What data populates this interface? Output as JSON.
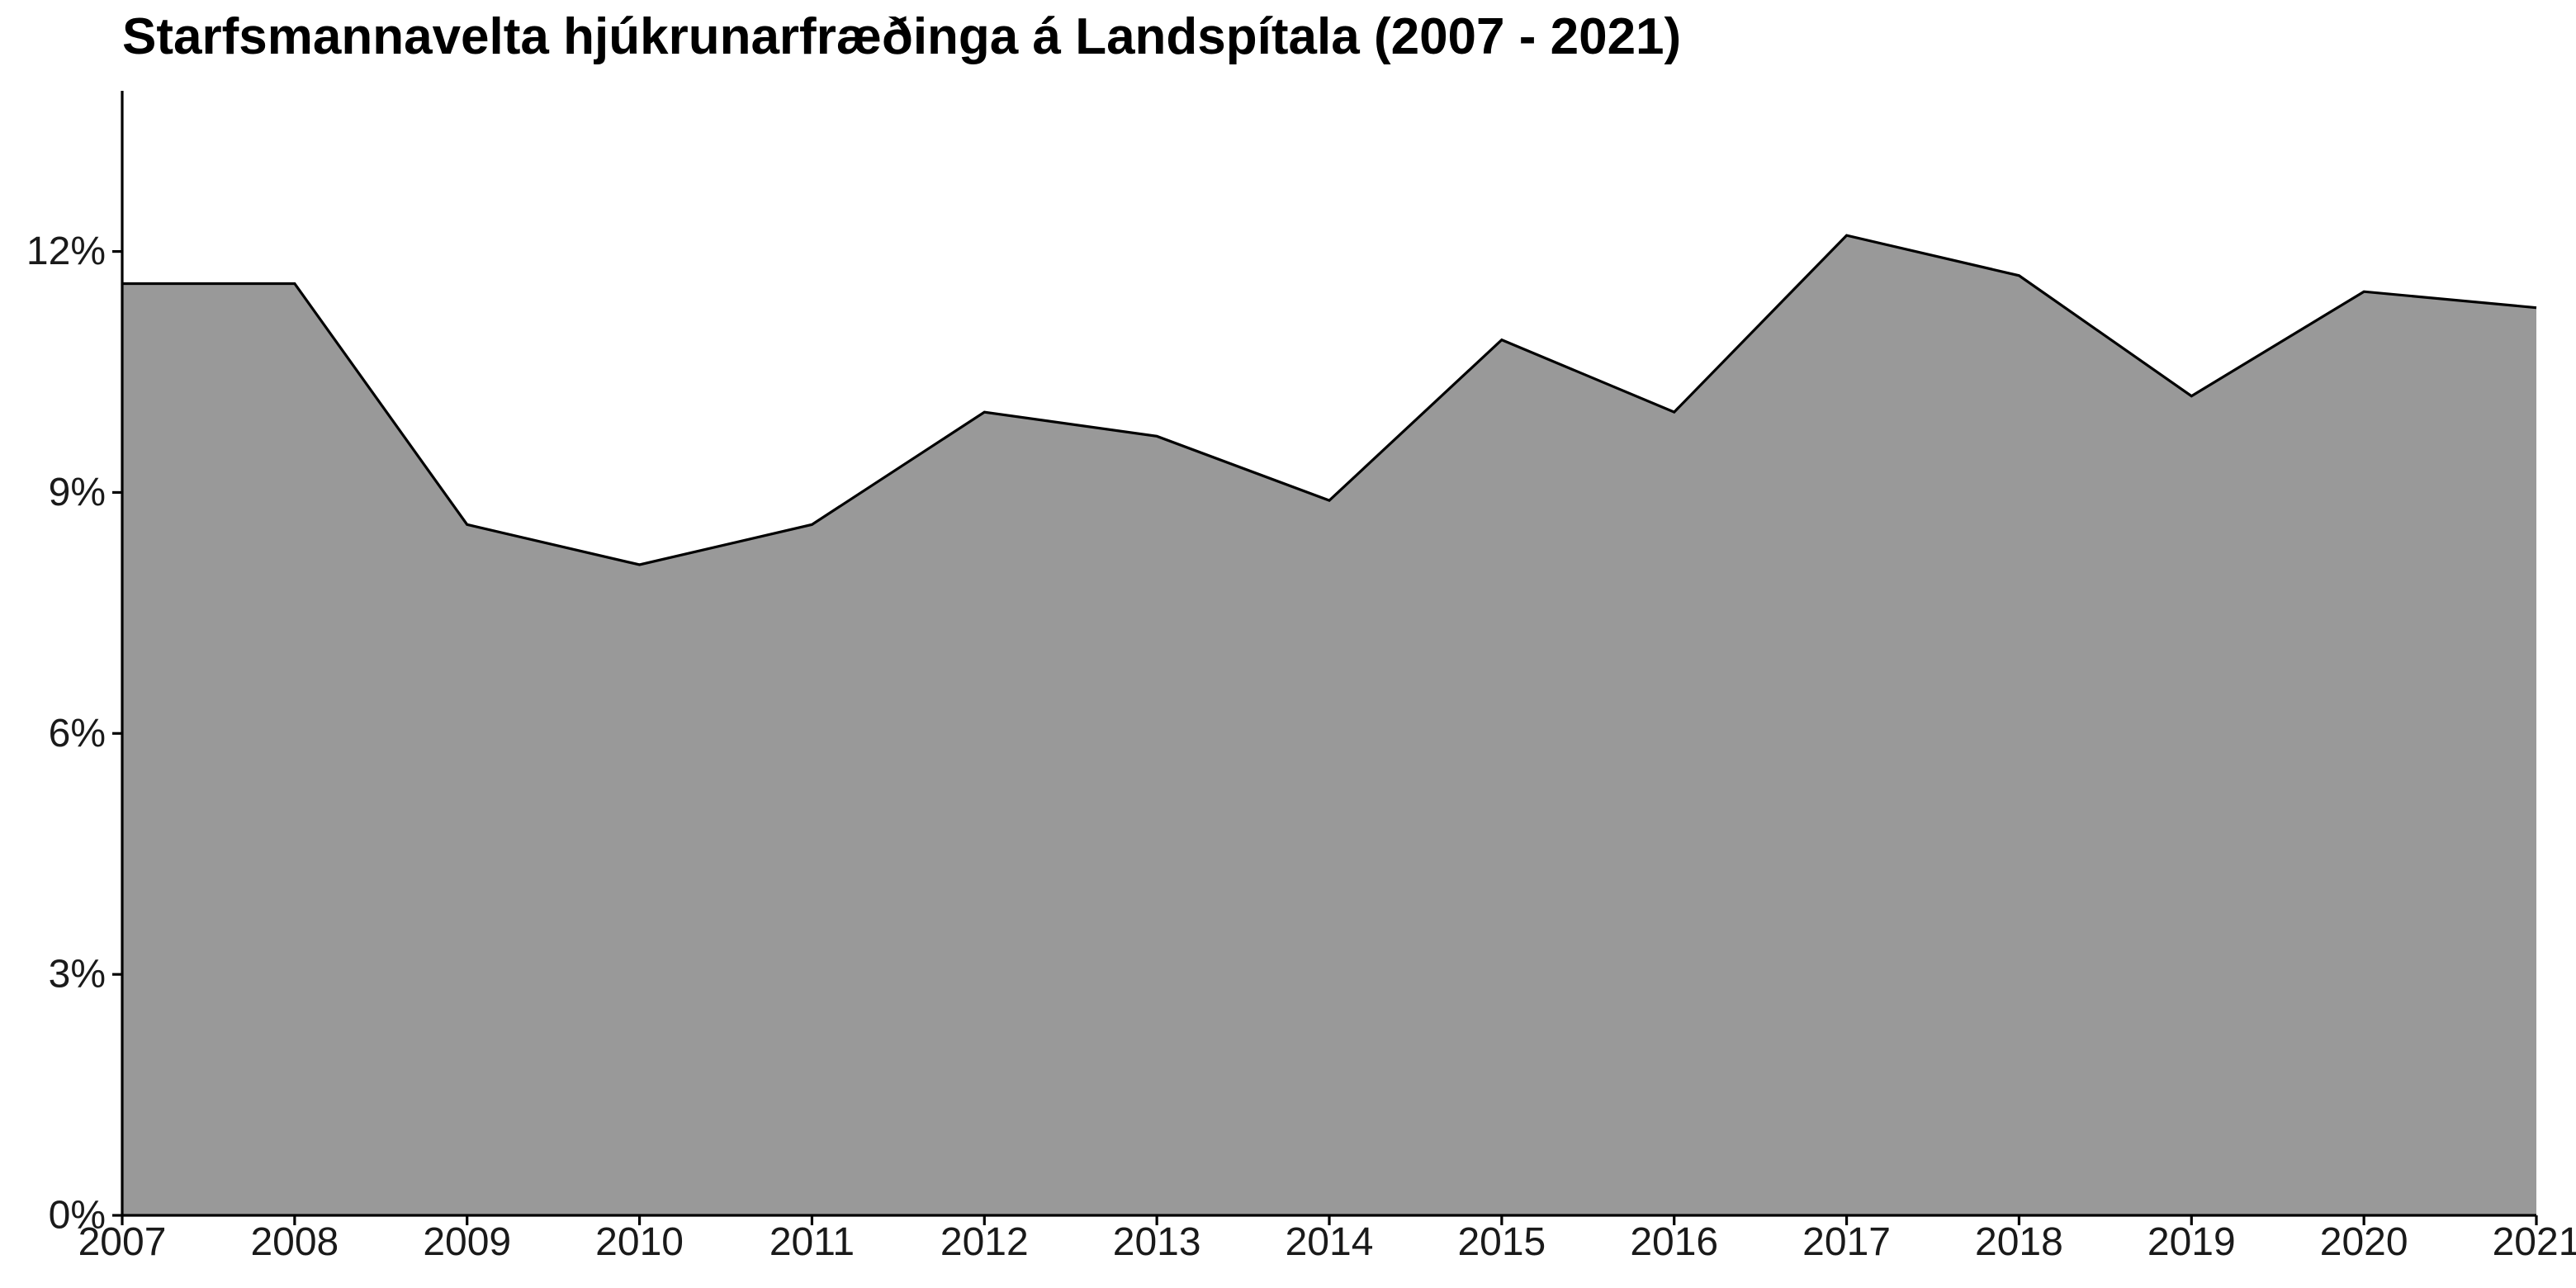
{
  "chart_data": {
    "type": "area",
    "title": "Starfsmannavelta hjúkrunarfræðinga á Landspítala (2007 - 2021)",
    "xlabel": "",
    "ylabel": "",
    "x": [
      "2007",
      "2008",
      "2009",
      "2010",
      "2011",
      "2012",
      "2013",
      "2014",
      "2015",
      "2016",
      "2017",
      "2018",
      "2019",
      "2020",
      "2021"
    ],
    "values": [
      11.6,
      11.6,
      8.6,
      8.1,
      8.6,
      10.0,
      9.7,
      8.9,
      10.9,
      10.0,
      12.2,
      11.7,
      10.2,
      11.5,
      11.3
    ],
    "y_unit": "%",
    "ylim": [
      0,
      14
    ],
    "y_ticks": [
      0,
      3,
      6,
      9,
      12
    ],
    "y_tick_labels": [
      "0%",
      "3%",
      "6%",
      "9%",
      "12%"
    ],
    "grid": false,
    "legend": "none",
    "colors": {
      "fill": "#999999",
      "line": "#000000",
      "axis": "#000000"
    }
  }
}
